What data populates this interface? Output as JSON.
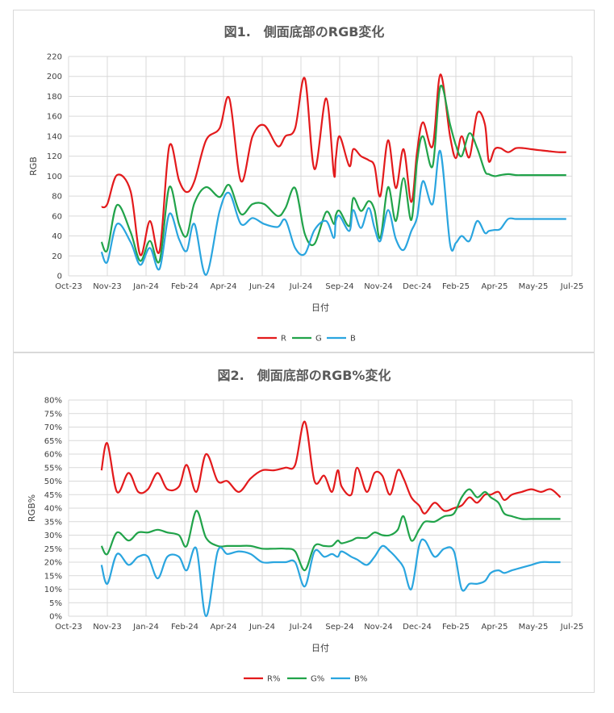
{
  "colors": {
    "r": "#e31a1c",
    "g": "#21a34a",
    "b": "#2aa5df"
  },
  "chart_data": [
    {
      "type": "line",
      "title": "図1.　側面底部のRGB変化",
      "xlabel": "日付",
      "ylabel": "RGB",
      "ylim": [
        0,
        220
      ],
      "yticks": [
        "0",
        "20",
        "40",
        "60",
        "80",
        "100",
        "120",
        "140",
        "160",
        "180",
        "200",
        "220"
      ],
      "xticks": [
        "Oct-23",
        "Nov-23",
        "Jan-24",
        "Feb-24",
        "Apr-24",
        "Jun-24",
        "Jul-24",
        "Sep-24",
        "Nov-24",
        "Dec-24",
        "Feb-25",
        "Apr-25",
        "May-25",
        "Jul-25"
      ],
      "grid": true,
      "legend_position": "bottom",
      "x": [
        0.85,
        1.0,
        1.25,
        1.6,
        1.85,
        2.1,
        2.35,
        2.6,
        2.85,
        3.05,
        3.25,
        3.55,
        3.9,
        4.15,
        4.45,
        4.75,
        5.05,
        5.4,
        5.6,
        5.85,
        6.1,
        6.35,
        6.65,
        6.85,
        6.9,
        7.0,
        7.25,
        7.35,
        7.55,
        7.75,
        7.9,
        8.05,
        8.25,
        8.45,
        8.65,
        8.85,
        9.0,
        9.15,
        9.4,
        9.6,
        9.85,
        10.0,
        10.15,
        10.35,
        10.55,
        10.75,
        10.85,
        11.0,
        11.15,
        11.35,
        11.55,
        11.75,
        11.95,
        12.15,
        12.4,
        12.65,
        12.85
      ],
      "series": [
        {
          "name": "R",
          "values": [
            69,
            72,
            101,
            85,
            21,
            55,
            25,
            130,
            96,
            84,
            95,
            136,
            148,
            178,
            95,
            140,
            151,
            130,
            140,
            148,
            198,
            107,
            178,
            102,
            118,
            140,
            110,
            127,
            120,
            116,
            110,
            80,
            136,
            88,
            127,
            74,
            125,
            154,
            130,
            202,
            140,
            118,
            140,
            119,
            163,
            152,
            115,
            127,
            128,
            124,
            128,
            128,
            127,
            126,
            125,
            124,
            124
          ]
        },
        {
          "name": "G",
          "values": [
            34,
            26,
            71,
            44,
            15,
            35,
            15,
            89,
            52,
            40,
            73,
            89,
            79,
            91,
            62,
            72,
            72,
            60,
            68,
            88,
            42,
            32,
            64,
            52,
            61,
            65,
            50,
            78,
            65,
            75,
            66,
            38,
            89,
            55,
            98,
            56,
            115,
            140,
            110,
            190,
            152,
            131,
            120,
            143,
            128,
            105,
            102,
            100,
            101,
            102,
            101,
            101,
            101,
            101,
            101,
            101,
            101
          ]
        },
        {
          "name": "B",
          "values": [
            24,
            14,
            52,
            34,
            11,
            28,
            7,
            62,
            37,
            25,
            52,
            1,
            65,
            83,
            52,
            58,
            52,
            49,
            56,
            28,
            22,
            46,
            55,
            38,
            55,
            60,
            45,
            66,
            48,
            68,
            48,
            35,
            66,
            37,
            26,
            45,
            59,
            95,
            72,
            125,
            32,
            33,
            40,
            35,
            55,
            43,
            45,
            46,
            47,
            57,
            57,
            57,
            57,
            57,
            57,
            57,
            57
          ]
        }
      ]
    },
    {
      "type": "line",
      "title": "図2.　側面底部のRGB%変化",
      "xlabel": "日付",
      "ylabel": "RGB%",
      "ylim": [
        0,
        80
      ],
      "yticks": [
        "0%",
        "5%",
        "10%",
        "15%",
        "20%",
        "25%",
        "30%",
        "35%",
        "40%",
        "45%",
        "50%",
        "55%",
        "60%",
        "65%",
        "70%",
        "75%",
        "80%"
      ],
      "xticks": [
        "Oct-23",
        "Nov-23",
        "Jan-24",
        "Feb-24",
        "Apr-24",
        "Jun-24",
        "Jul-24",
        "Sep-24",
        "Nov-24",
        "Dec-24",
        "Feb-25",
        "Apr-25",
        "May-25",
        "Jul-25"
      ],
      "grid": true,
      "legend_position": "bottom",
      "x": [
        0.85,
        1.0,
        1.25,
        1.55,
        1.8,
        2.05,
        2.3,
        2.55,
        2.85,
        3.05,
        3.3,
        3.55,
        3.85,
        4.1,
        4.4,
        4.7,
        5.0,
        5.3,
        5.6,
        5.85,
        6.1,
        6.35,
        6.6,
        6.8,
        6.95,
        7.05,
        7.3,
        7.45,
        7.7,
        7.9,
        8.1,
        8.3,
        8.5,
        8.65,
        8.85,
        9.05,
        9.2,
        9.45,
        9.7,
        9.95,
        10.15,
        10.35,
        10.55,
        10.75,
        10.9,
        11.1,
        11.25,
        11.45,
        11.7,
        11.95,
        12.2,
        12.45,
        12.7
      ],
      "series": [
        {
          "name": "R%",
          "values": [
            54,
            64,
            46,
            53,
            46,
            47,
            53,
            47,
            48,
            56,
            46,
            60,
            50,
            50,
            46,
            51,
            54,
            54,
            55,
            56,
            72,
            50,
            52,
            46,
            54,
            48,
            45,
            55,
            46,
            53,
            52,
            45,
            54,
            51,
            44,
            41,
            38,
            42,
            39,
            40,
            41,
            44,
            42,
            45,
            45,
            46,
            43,
            45,
            46,
            47,
            46,
            47,
            44
          ]
        },
        {
          "name": "G%",
          "values": [
            26,
            23,
            31,
            28,
            31,
            31,
            32,
            31,
            30,
            26,
            39,
            29,
            26,
            26,
            26,
            26,
            25,
            25,
            25,
            24,
            17,
            26,
            26,
            26,
            28,
            27,
            28,
            29,
            29,
            31,
            30,
            30,
            32,
            37,
            28,
            32,
            35,
            35,
            37,
            38,
            44,
            47,
            44,
            46,
            44,
            42,
            38,
            37,
            36,
            36,
            36,
            36,
            36
          ]
        },
        {
          "name": "B%",
          "values": [
            19,
            12,
            23,
            19,
            22,
            22,
            14,
            22,
            22,
            17,
            25,
            0,
            24,
            23,
            24,
            23,
            20,
            20,
            20,
            20,
            11,
            24,
            22,
            23,
            22,
            24,
            22,
            21,
            19,
            22,
            26,
            24,
            21,
            18,
            10,
            26,
            28,
            22,
            25,
            24,
            10,
            12,
            12,
            13,
            16,
            17,
            16,
            17,
            18,
            19,
            20,
            20,
            20
          ]
        }
      ]
    }
  ]
}
